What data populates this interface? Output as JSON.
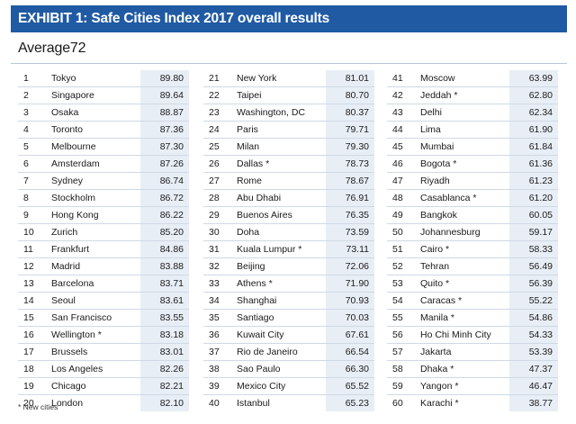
{
  "title": "EXHIBIT 1: Safe Cities Index 2017 overall results",
  "average_label": "Average72",
  "columns": [
    [
      {
        "rank": "1",
        "city": "Tokyo",
        "score": "89.80"
      },
      {
        "rank": "2",
        "city": "Singapore",
        "score": "89.64"
      },
      {
        "rank": "3",
        "city": "Osaka",
        "score": "88.87"
      },
      {
        "rank": "4",
        "city": "Toronto",
        "score": "87.36"
      },
      {
        "rank": "5",
        "city": "Melbourne",
        "score": "87.30"
      },
      {
        "rank": "6",
        "city": "Amsterdam",
        "score": "87.26"
      },
      {
        "rank": "7",
        "city": "Sydney",
        "score": "86.74"
      },
      {
        "rank": "8",
        "city": "Stockholm",
        "score": "86.72"
      },
      {
        "rank": "9",
        "city": "Hong Kong",
        "score": "86.22"
      },
      {
        "rank": "10",
        "city": "Zurich",
        "score": "85.20"
      },
      {
        "rank": "11",
        "city": "Frankfurt",
        "score": "84.86"
      },
      {
        "rank": "12",
        "city": "Madrid",
        "score": "83.88"
      },
      {
        "rank": "13",
        "city": "Barcelona",
        "score": "83.71"
      },
      {
        "rank": "14",
        "city": "Seoul",
        "score": "83.61"
      },
      {
        "rank": "15",
        "city": "San Francisco",
        "score": "83.55"
      },
      {
        "rank": "16",
        "city": "Wellington *",
        "score": "83.18"
      },
      {
        "rank": "17",
        "city": "Brussels",
        "score": "83.01"
      },
      {
        "rank": "18",
        "city": "Los Angeles",
        "score": "82.26"
      },
      {
        "rank": "19",
        "city": "Chicago",
        "score": "82.21"
      },
      {
        "rank": "20",
        "city": "London",
        "score": "82.10"
      }
    ],
    [
      {
        "rank": "21",
        "city": "New York",
        "score": "81.01"
      },
      {
        "rank": "22",
        "city": "Taipei",
        "score": "80.70"
      },
      {
        "rank": "23",
        "city": "Washington, DC",
        "score": "80.37"
      },
      {
        "rank": "24",
        "city": "Paris",
        "score": "79.71"
      },
      {
        "rank": "25",
        "city": "Milan",
        "score": "79.30"
      },
      {
        "rank": "26",
        "city": "Dallas *",
        "score": "78.73"
      },
      {
        "rank": "27",
        "city": "Rome",
        "score": "78.67"
      },
      {
        "rank": "28",
        "city": "Abu Dhabi",
        "score": "76.91"
      },
      {
        "rank": "29",
        "city": "Buenos Aires",
        "score": "76.35"
      },
      {
        "rank": "30",
        "city": "Doha",
        "score": "73.59"
      },
      {
        "rank": "31",
        "city": "Kuala Lumpur *",
        "score": "73.11"
      },
      {
        "rank": "32",
        "city": "Beijing",
        "score": "72.06"
      },
      {
        "rank": "33",
        "city": "Athens *",
        "score": "71.90"
      },
      {
        "rank": "34",
        "city": "Shanghai",
        "score": "70.93"
      },
      {
        "rank": "35",
        "city": "Santiago",
        "score": "70.03"
      },
      {
        "rank": "36",
        "city": "Kuwait City",
        "score": "67.61"
      },
      {
        "rank": "37",
        "city": "Rio de Janeiro",
        "score": "66.54"
      },
      {
        "rank": "38",
        "city": "Sao Paulo",
        "score": "66.30"
      },
      {
        "rank": "39",
        "city": "Mexico City",
        "score": "65.52"
      },
      {
        "rank": "40",
        "city": "Istanbul",
        "score": "65.23"
      }
    ],
    [
      {
        "rank": "41",
        "city": "Moscow",
        "score": "63.99"
      },
      {
        "rank": "42",
        "city": "Jeddah *",
        "score": "62.80"
      },
      {
        "rank": "43",
        "city": "Delhi",
        "score": "62.34"
      },
      {
        "rank": "44",
        "city": "Lima",
        "score": "61.90"
      },
      {
        "rank": "45",
        "city": "Mumbai",
        "score": "61.84"
      },
      {
        "rank": "46",
        "city": "Bogota *",
        "score": "61.36"
      },
      {
        "rank": "47",
        "city": "Riyadh",
        "score": "61.23"
      },
      {
        "rank": "48",
        "city": "Casablanca *",
        "score": "61.20"
      },
      {
        "rank": "49",
        "city": "Bangkok",
        "score": "60.05"
      },
      {
        "rank": "50",
        "city": "Johannesburg",
        "score": "59.17"
      },
      {
        "rank": "51",
        "city": "Cairo *",
        "score": "58.33"
      },
      {
        "rank": "52",
        "city": "Tehran",
        "score": "56.49"
      },
      {
        "rank": "53",
        "city": "Quito *",
        "score": "56.39"
      },
      {
        "rank": "54",
        "city": "Caracas *",
        "score": "55.22"
      },
      {
        "rank": "55",
        "city": "Manila *",
        "score": "54.86"
      },
      {
        "rank": "56",
        "city": "Ho Chi Minh City",
        "score": "54.33"
      },
      {
        "rank": "57",
        "city": "Jakarta",
        "score": "53.39"
      },
      {
        "rank": "58",
        "city": "Dhaka *",
        "score": "47.37"
      },
      {
        "rank": "59",
        "city": "Yangon *",
        "score": "46.47"
      },
      {
        "rank": "60",
        "city": "Karachi *",
        "score": "38.77"
      }
    ]
  ],
  "footnote": "* New cities",
  "colors": {
    "banner": "#1f5aa3",
    "score_bg": "#e8eef6",
    "rule": "#cfd9e6"
  }
}
